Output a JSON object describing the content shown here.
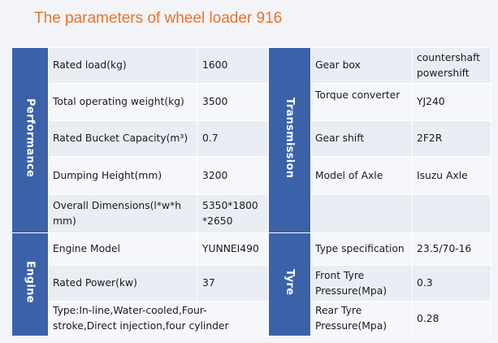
{
  "title": "The parameters of wheel loader 916",
  "categories": {
    "performance": "Performance",
    "transmission": "Transmission",
    "engine": "Engine",
    "tyre": "Tyre"
  },
  "performance": [
    {
      "label": "Rated load(kg)",
      "value": "1600"
    },
    {
      "label": "Total operating weight(kg)",
      "value": "3500"
    },
    {
      "label": "Rated Bucket Capacity(m³)",
      "value": "0.7"
    },
    {
      "label": "Dumping Height(mm)",
      "value": "3200"
    },
    {
      "label": "Overall Dimensions(l*w*h mm)",
      "value": "5350*1800 *2650"
    }
  ],
  "transmission": [
    {
      "label": "Gear box",
      "value": "countershaft powershift"
    },
    {
      "label": "Torque converter",
      "value": "YJ240"
    },
    {
      "label": "Gear shift",
      "value": "2F2R"
    },
    {
      "label": "Model of Axle",
      "value": "Isuzu Axle"
    }
  ],
  "engine": [
    {
      "label": "Engine Model",
      "value": "YUNNEI490"
    },
    {
      "label": "Rated Power(kw)",
      "value": "37"
    },
    {
      "label": "Type:In-line,Water-cooled,Four-stroke,Direct injection,four cylinder"
    }
  ],
  "tyre": [
    {
      "label": "Type specification",
      "value": "23.5/70-16"
    },
    {
      "label": "Front Tyre Pressure(Mpa)",
      "value": "0.3"
    },
    {
      "label": "Rear Tyre Pressure(Mpa)",
      "value": "0.28"
    }
  ]
}
